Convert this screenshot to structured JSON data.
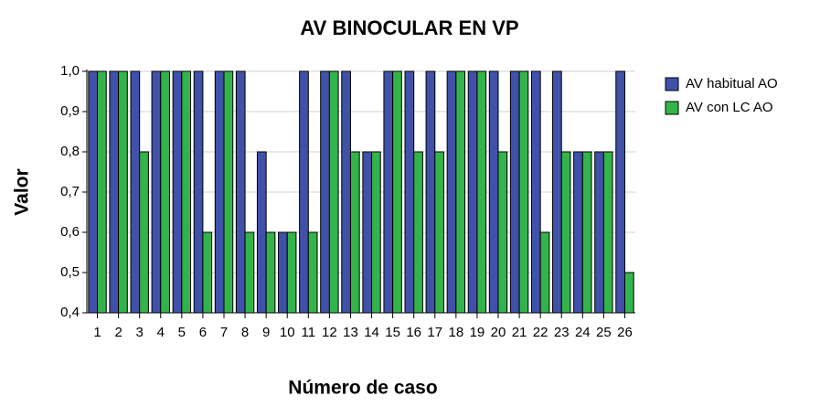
{
  "chart_data": {
    "type": "bar",
    "title": "AV BINOCULAR EN VP",
    "x_label": "Número de caso",
    "y_label": "Valor",
    "categories": [
      "1",
      "2",
      "3",
      "4",
      "5",
      "6",
      "7",
      "8",
      "9",
      "10",
      "11",
      "12",
      "13",
      "14",
      "15",
      "16",
      "17",
      "18",
      "19",
      "20",
      "21",
      "22",
      "23",
      "24",
      "25",
      "26"
    ],
    "series": [
      {
        "name": "AV habitual AO",
        "color": "#3f51a8",
        "values": [
          1.0,
          1.0,
          1.0,
          1.0,
          1.0,
          1.0,
          1.0,
          1.0,
          0.8,
          0.6,
          1.0,
          1.0,
          1.0,
          0.8,
          1.0,
          1.0,
          1.0,
          1.0,
          1.0,
          1.0,
          1.0,
          1.0,
          1.0,
          0.8,
          0.8,
          1.0
        ]
      },
      {
        "name": "AV con LC AO",
        "color": "#33b44a",
        "values": [
          1.0,
          1.0,
          0.8,
          1.0,
          1.0,
          0.6,
          1.0,
          0.6,
          0.6,
          0.6,
          0.6,
          1.0,
          0.8,
          0.8,
          1.0,
          0.8,
          0.8,
          1.0,
          1.0,
          0.8,
          1.0,
          0.6,
          0.8,
          0.8,
          0.8,
          0.5
        ]
      }
    ],
    "ylim": [
      0.4,
      1.0
    ],
    "yticks": [
      {
        "value": 0.4,
        "label": "0,4"
      },
      {
        "value": 0.5,
        "label": "0,5"
      },
      {
        "value": 0.6,
        "label": "0,6"
      },
      {
        "value": 0.7,
        "label": "0,7"
      },
      {
        "value": 0.8,
        "label": "0,8"
      },
      {
        "value": 0.9,
        "label": "0,9"
      },
      {
        "value": 1.0,
        "label": "1,0"
      }
    ],
    "grid": true,
    "legend": "right"
  }
}
